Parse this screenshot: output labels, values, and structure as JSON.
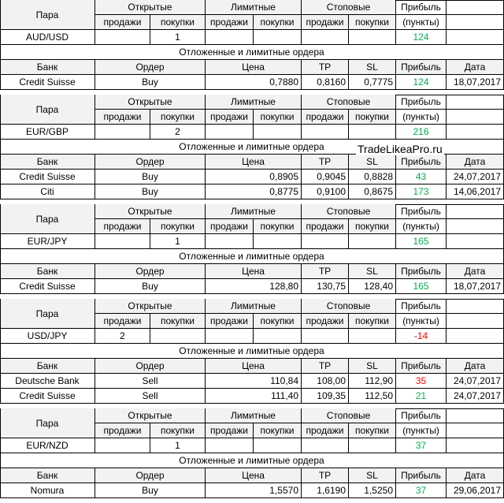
{
  "labels": {
    "pair": "Пара",
    "open": "Открытые",
    "limit": "Лимитные",
    "stop": "Стоповые",
    "profit": "Прибыль",
    "points": "(пункты)",
    "sell": "продажи",
    "buy": "покупки",
    "pending": "Отложенные и лимитные ордера",
    "bank": "Банк",
    "order": "Ордер",
    "price": "Цена",
    "tp": "TP",
    "sl": "SL",
    "date": "Дата"
  },
  "watermark": "TradeLikeaPro.ru",
  "blocks": [
    {
      "pair": "AUD/USD",
      "open_sell": "",
      "open_buy": "1",
      "profit": "124",
      "profit_color": "green",
      "orders": [
        {
          "bank": "Credit Suisse",
          "order": "Buy",
          "price": "0,7880",
          "tp": "0,8160",
          "sl": "0,7775",
          "profit": "124",
          "profit_color": "green",
          "date": "18,07,2017"
        }
      ]
    },
    {
      "pair": "EUR/GBP",
      "open_sell": "",
      "open_buy": "2",
      "profit": "216",
      "profit_color": "green",
      "orders": [
        {
          "bank": "Credit Suisse",
          "order": "Buy",
          "price": "0,8905",
          "tp": "0,9045",
          "sl": "0,8828",
          "profit": "43",
          "profit_color": "green",
          "date": "24,07,2017"
        },
        {
          "bank": "Citi",
          "order": "Buy",
          "price": "0,8775",
          "tp": "0,9100",
          "sl": "0,8675",
          "profit": "173",
          "profit_color": "green",
          "date": "14,06,2017"
        }
      ]
    },
    {
      "pair": "EUR/JPY",
      "open_sell": "",
      "open_buy": "1",
      "profit": "165",
      "profit_color": "green",
      "orders": [
        {
          "bank": "Credit Suisse",
          "order": "Buy",
          "price": "128,80",
          "tp": "130,75",
          "sl": "128,40",
          "profit": "165",
          "profit_color": "green",
          "date": "18,07,2017"
        }
      ]
    },
    {
      "pair": "USD/JPY",
      "open_sell": "2",
      "open_buy": "",
      "profit": "-14",
      "profit_color": "red",
      "orders": [
        {
          "bank": "Deutsche Bank",
          "order": "Sell",
          "price": "110,84",
          "tp": "108,00",
          "sl": "112,90",
          "profit": "35",
          "profit_color": "red",
          "date": "24,07,2017"
        },
        {
          "bank": "Credit Suisse",
          "order": "Sell",
          "price": "111,40",
          "tp": "109,35",
          "sl": "112,50",
          "profit": "21",
          "profit_color": "green",
          "date": "24,07,2017"
        }
      ]
    },
    {
      "pair": "EUR/NZD",
      "open_sell": "",
      "open_buy": "1",
      "profit": "37",
      "profit_color": "green",
      "orders": [
        {
          "bank": "Nomura",
          "order": "Buy",
          "price": "1,5570",
          "tp": "1,6190",
          "sl": "1,5250",
          "profit": "37",
          "profit_color": "green",
          "date": "29,06,2017"
        }
      ]
    }
  ]
}
